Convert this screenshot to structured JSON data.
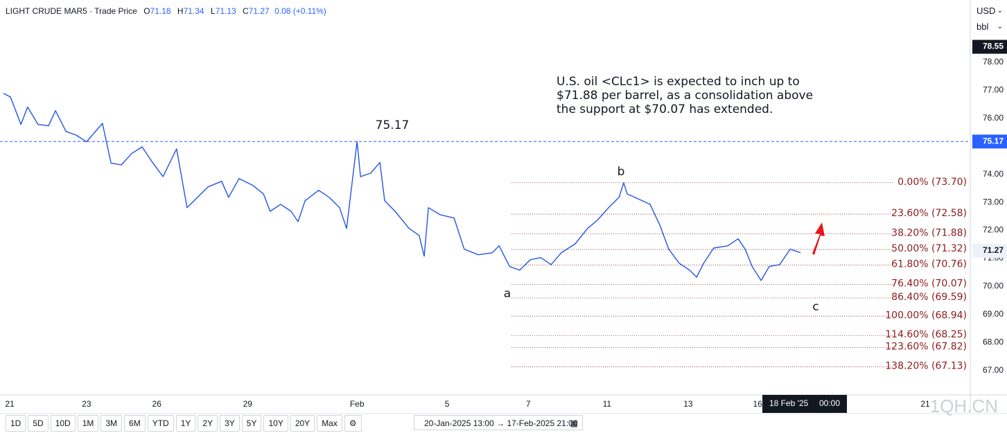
{
  "chart_data": {
    "type": "line",
    "symbol": "LIGHT CRUDE MAR5",
    "separator": "·",
    "price_type": "Trade Price",
    "ohlc": [
      {
        "label": "O",
        "value": 71.18
      },
      {
        "label": "H",
        "value": 71.34
      },
      {
        "label": "L",
        "value": 71.13
      },
      {
        "label": "C",
        "value": 71.27
      }
    ],
    "change": "0.08 (+0.11%)",
    "currency": "USD",
    "unit": "bbl",
    "annotation": [
      "U.S. oil <CLc1> is expected to inch up to",
      "$71.88 per barrel, as a consolidation above",
      "the support at $70.07 has extended."
    ],
    "peak_label": "75.17",
    "wave_labels": [
      "a",
      "b",
      "c"
    ],
    "color": "#2154e6",
    "grid": false,
    "x": [
      -0.16,
      0.02,
      0.29,
      0.46,
      0.73,
      1.0,
      1.18,
      1.45,
      1.71,
      1.98,
      2.39,
      2.61,
      2.88,
      3.14,
      3.41,
      3.68,
      3.95,
      4.3,
      4.57,
      4.84,
      5.11,
      5.46,
      5.64,
      5.91,
      6.27,
      6.54,
      6.71,
      6.98,
      7.25,
      7.43,
      7.61,
      7.96,
      8.23,
      8.5,
      8.68,
      8.95,
      9.04,
      9.3,
      9.54,
      9.66,
      9.93,
      10.29,
      10.55,
      10.68,
      10.79,
      11.09,
      11.45,
      11.71,
      12.07,
      12.43,
      12.61,
      12.88,
      13.14,
      13.41,
      13.68,
      13.95,
      14.21,
      14.57,
      14.89,
      15.14,
      15.43,
      15.7,
      15.82,
      15.91,
      16.18,
      16.5,
      16.75,
      16.98,
      17.25,
      17.52,
      17.7,
      17.88,
      18.14,
      18.5,
      18.77,
      18.95,
      19.13,
      19.36,
      19.57,
      19.84,
      20.11,
      20.38
    ],
    "values": [
      76.89,
      76.76,
      75.78,
      76.4,
      75.78,
      75.73,
      76.27,
      75.53,
      75.4,
      75.16,
      75.82,
      74.4,
      74.34,
      74.74,
      74.98,
      74.42,
      73.92,
      74.91,
      72.81,
      73.18,
      73.55,
      73.75,
      73.18,
      73.85,
      73.6,
      73.3,
      72.68,
      72.93,
      72.68,
      72.31,
      73.06,
      73.43,
      73.18,
      72.81,
      72.07,
      75.17,
      73.92,
      74.04,
      74.42,
      73.06,
      72.68,
      72.07,
      71.82,
      71.08,
      72.81,
      72.56,
      72.44,
      71.33,
      71.13,
      71.2,
      71.45,
      70.71,
      70.58,
      70.95,
      71.03,
      70.78,
      71.2,
      71.52,
      72.07,
      72.36,
      72.81,
      73.18,
      73.7,
      73.3,
      73.13,
      72.93,
      72.19,
      71.33,
      70.83,
      70.58,
      70.33,
      70.83,
      71.37,
      71.45,
      71.7,
      71.33,
      70.71,
      70.21,
      70.71,
      70.78,
      71.33,
      71.2
    ],
    "xlim": [
      -0.25,
      24.75
    ],
    "ylim": [
      66.13,
      80.22
    ],
    "xticks": [
      {
        "value": 0,
        "label": "21"
      },
      {
        "value": 1.98,
        "label": "23"
      },
      {
        "value": 3.79,
        "label": "26"
      },
      {
        "value": 6.13,
        "label": "29"
      },
      {
        "value": 8.95,
        "label": "Feb"
      },
      {
        "value": 11.27,
        "label": "5"
      },
      {
        "value": 13.36,
        "label": "7"
      },
      {
        "value": 15.39,
        "label": "11"
      },
      {
        "value": 17.48,
        "label": "13"
      },
      {
        "value": 19.27,
        "label": "16"
      },
      {
        "value": 23.59,
        "label": "21"
      }
    ],
    "yticks": [
      {
        "value": 67,
        "label": "67.00"
      },
      {
        "value": 68,
        "label": "68.00"
      },
      {
        "value": 69,
        "label": "69.00"
      },
      {
        "value": 70,
        "label": "70.00"
      },
      {
        "value": 71,
        "label": "71.00"
      },
      {
        "value": 72,
        "label": "72.00"
      },
      {
        "value": 73,
        "label": "73.00"
      },
      {
        "value": 74,
        "label": "74.00"
      },
      {
        "value": 76,
        "label": "76.00"
      },
      {
        "value": 77,
        "label": "77.00"
      },
      {
        "value": 78,
        "label": "78.00"
      }
    ],
    "fib_from_x": 12.93,
    "fib_levels": [
      {
        "value": 73.7,
        "label": "0.00% (73.70)"
      },
      {
        "value": 72.58,
        "label": "23.60% (72.58)"
      },
      {
        "value": 71.88,
        "label": "38.20% (71.88)"
      },
      {
        "value": 71.32,
        "label": "50.00% (71.32)"
      },
      {
        "value": 70.76,
        "label": "61.80% (70.76)"
      },
      {
        "value": 70.07,
        "label": "76.40% (70.07)"
      },
      {
        "value": 69.59,
        "label": "86.40% (69.59)"
      },
      {
        "value": 68.94,
        "label": "100.00% (68.94)"
      },
      {
        "value": 68.25,
        "label": "114.60% (68.25)"
      },
      {
        "value": 67.82,
        "label": "123.60% (67.82)"
      },
      {
        "value": 67.13,
        "label": "138.20% (67.13)"
      }
    ],
    "fib_color": "#8b1a1a",
    "price_tags": [
      {
        "value": 78.55,
        "color": "#131722"
      },
      {
        "value": 75.17,
        "color": "#2962ff"
      },
      {
        "value": 71.27,
        "color": "#eef1f8"
      }
    ],
    "dashed_level": 75.17,
    "crosshair": [
      "18 Feb '25",
      "00:00"
    ]
  },
  "toolbar": {
    "ranges": [
      "1D",
      "5D",
      "10D",
      "1M",
      "3M",
      "6M",
      "YTD",
      "1Y",
      "2Y",
      "3Y",
      "5Y",
      "10Y",
      "20Y",
      "Max"
    ],
    "date_from": "20-Jan-2025 13:00",
    "date_sep": "→",
    "date_to": "17-Feb-2025 21:00"
  },
  "watermark": "1QH.CN"
}
